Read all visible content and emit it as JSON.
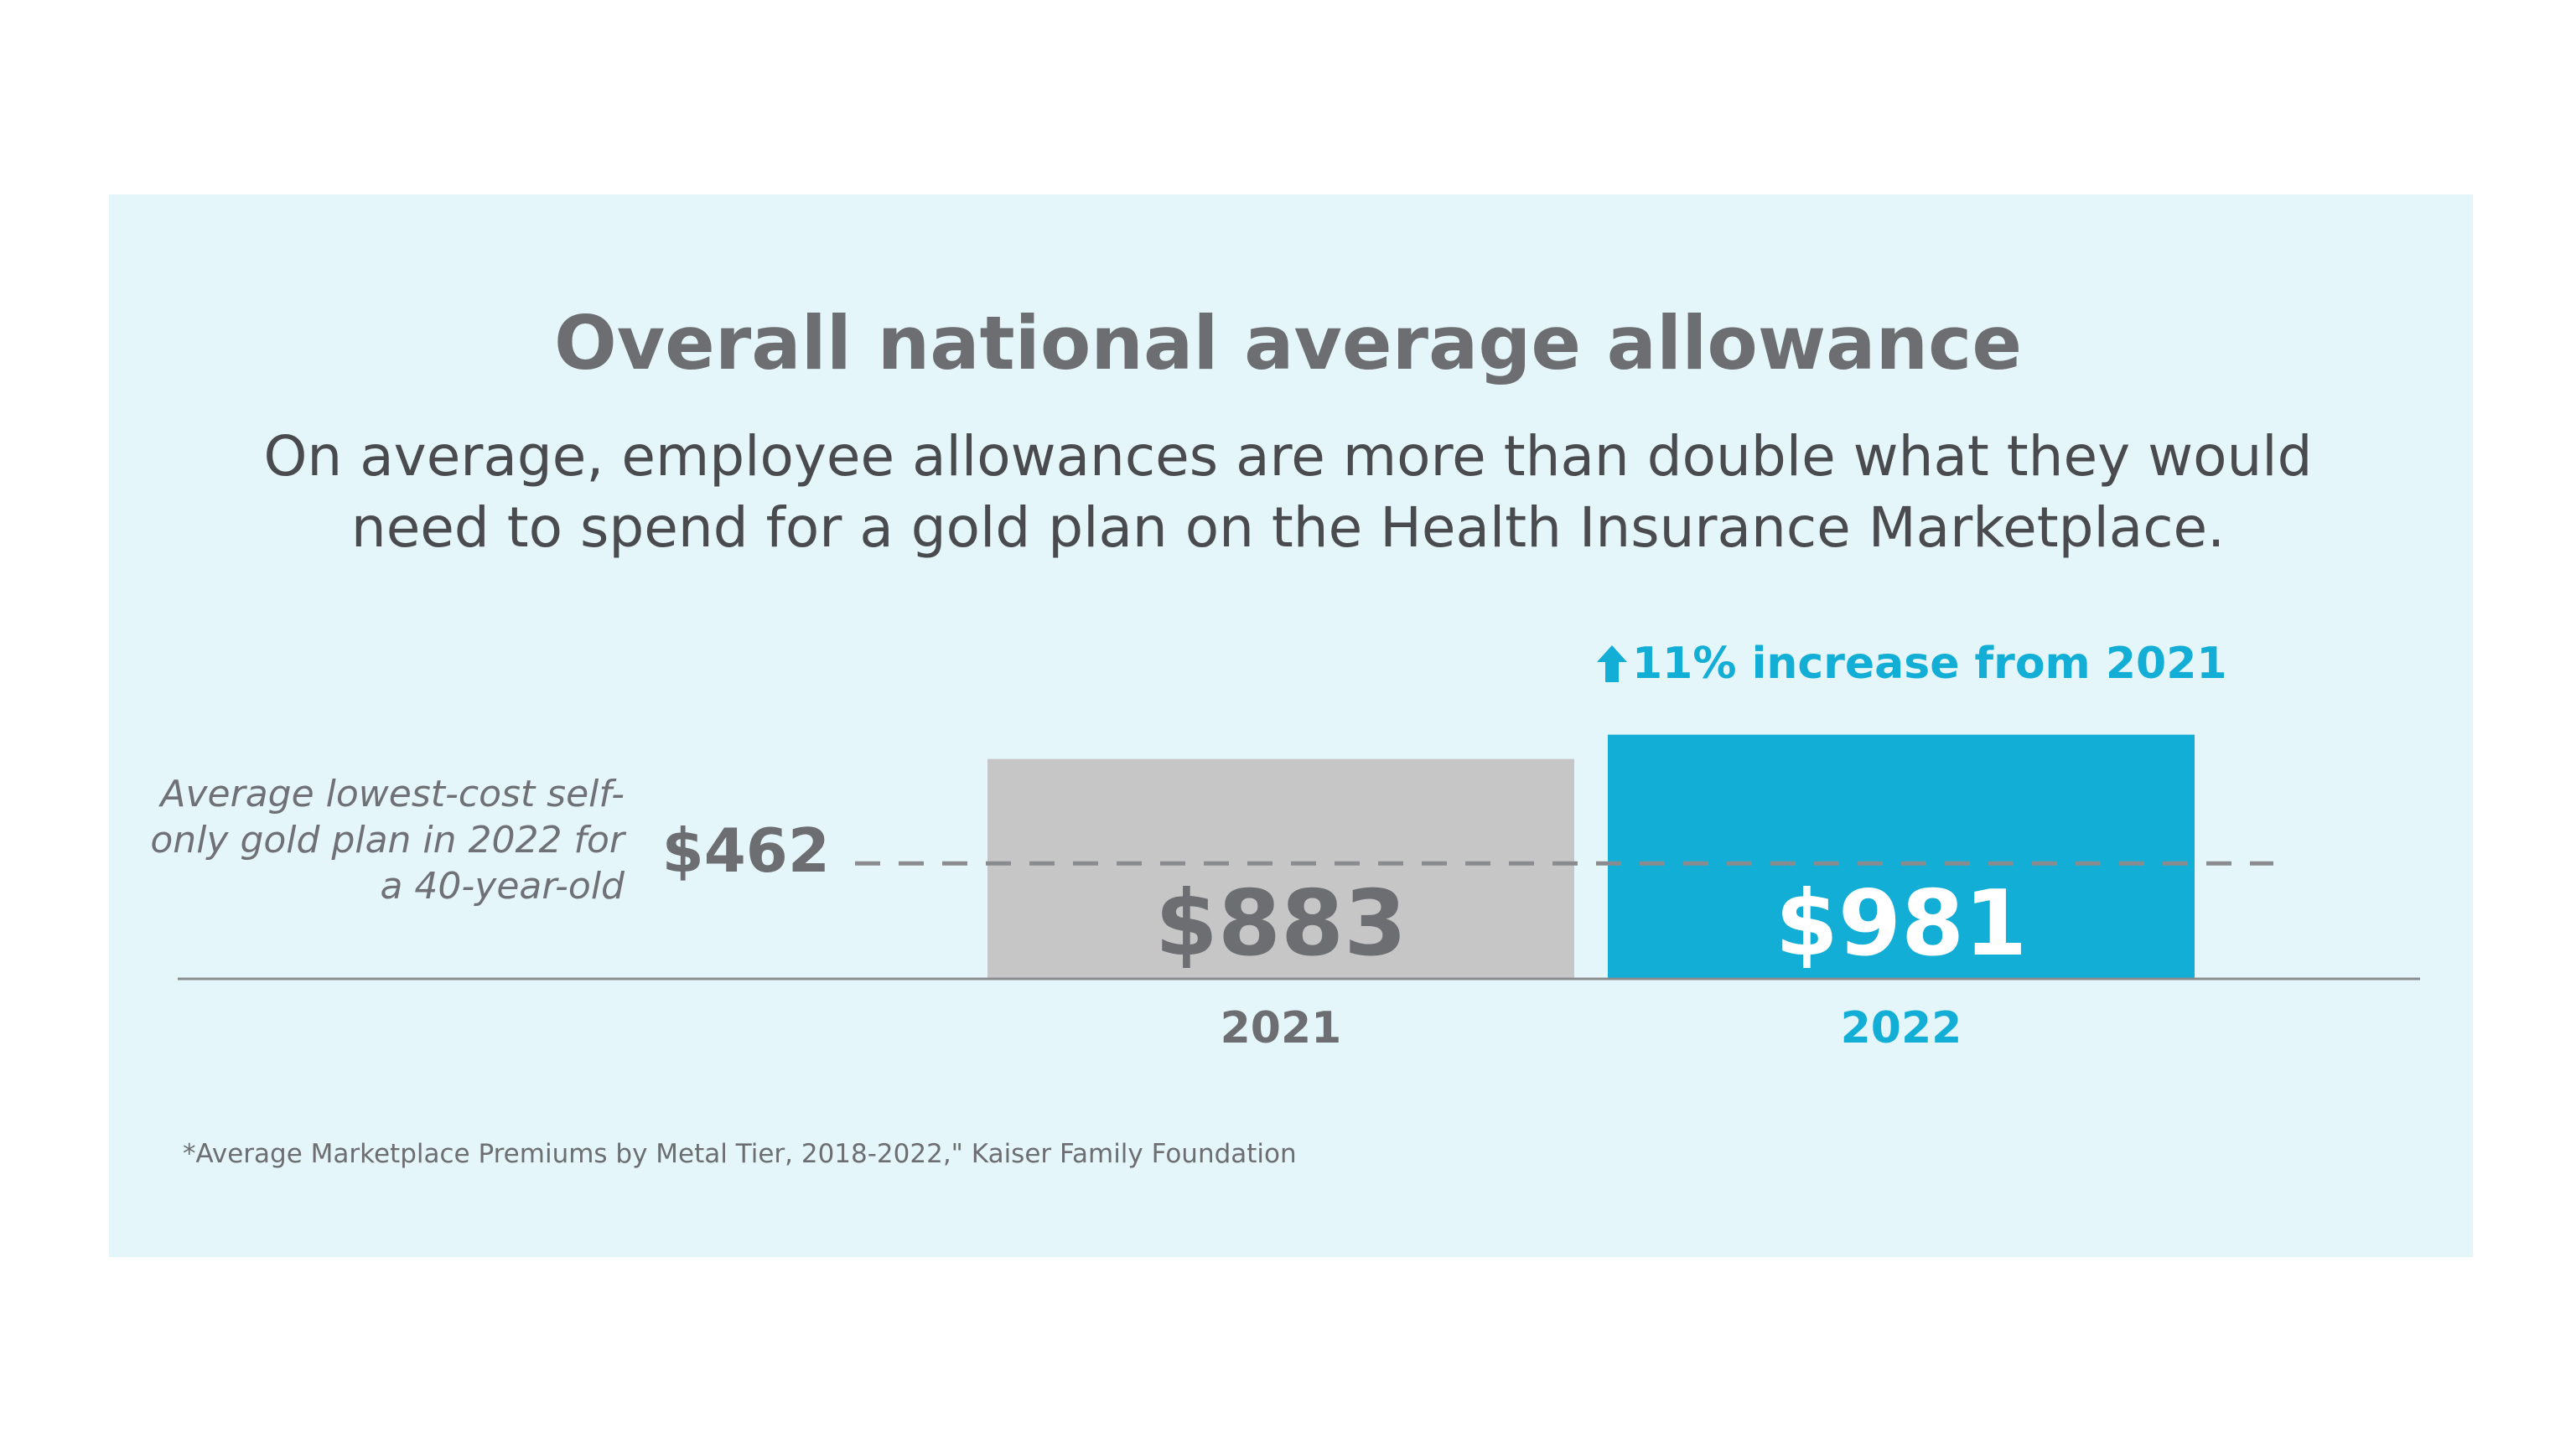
{
  "chart_data": {
    "type": "bar",
    "title": "Overall national average allowance",
    "subtitle": "On average, employee allowances are more than double what they would need to spend for a gold plan on the Health Insurance Marketplace.",
    "categories": [
      "2021",
      "2022"
    ],
    "values": [
      883,
      981
    ],
    "value_labels": [
      "$883",
      "$981"
    ],
    "bar_colors": [
      "#c6c6c6",
      "#13aed6"
    ],
    "value_label_colors": [
      "#6d6e72",
      "#ffffff"
    ],
    "category_label_colors": [
      "#6d6e72",
      "#13aed6"
    ],
    "ylim": [
      0,
      1000
    ],
    "grid": false,
    "reference_line": {
      "value": 462,
      "value_label": "$462",
      "label": "Average lowest-cost self-only gold plan in 2022 for a 40-year-old",
      "style": "dashed",
      "color": "#8a8b8e"
    },
    "annotation": {
      "text": "11% increase from 2021",
      "icon": "up-arrow-icon",
      "color": "#13aed6",
      "applies_to": "2022"
    },
    "source": "*Average Marketplace Premiums by Metal Tier, 2018-2022,\" Kaiser Family Foundation"
  }
}
